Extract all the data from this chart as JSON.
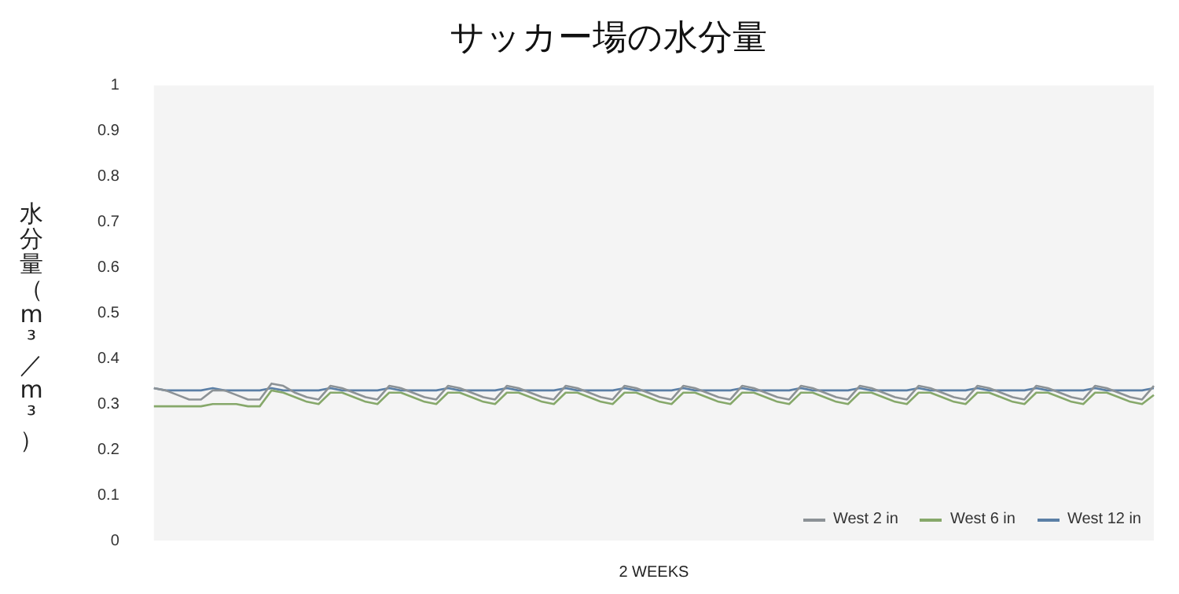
{
  "chart_data": {
    "type": "line",
    "title": "サッカー場の水分量",
    "xlabel": "2 WEEKS",
    "ylabel": "水分量（m³／m³）",
    "categories": [
      null,
      null,
      null,
      null,
      null,
      null,
      null,
      null,
      null,
      null,
      null,
      null,
      null,
      null,
      null,
      null,
      null,
      null,
      null,
      null,
      null,
      null,
      null,
      null,
      null,
      null,
      null,
      null,
      null,
      null,
      null,
      null,
      null,
      null,
      null,
      null,
      null,
      null,
      null,
      null,
      null,
      null,
      null,
      null,
      null,
      null,
      null,
      null,
      null,
      null,
      null,
      null,
      null,
      null,
      null,
      null,
      null,
      null,
      null,
      null,
      null,
      null,
      null,
      null,
      null,
      null,
      null,
      null,
      null,
      null,
      null,
      null,
      null,
      null,
      null,
      null,
      null,
      null,
      null,
      null,
      null,
      null,
      null,
      null,
      null,
      null
    ],
    "series": [
      {
        "name": "West 2 in",
        "color": "#8c9296",
        "values": [
          0.335,
          0.33,
          0.32,
          0.31,
          0.31,
          0.33,
          0.33,
          0.32,
          0.31,
          0.31,
          0.345,
          0.34,
          0.325,
          0.315,
          0.31,
          0.34,
          0.335,
          0.325,
          0.315,
          0.31,
          0.34,
          0.335,
          0.325,
          0.315,
          0.31,
          0.34,
          0.335,
          0.325,
          0.315,
          0.31,
          0.34,
          0.335,
          0.325,
          0.315,
          0.31,
          0.34,
          0.335,
          0.325,
          0.315,
          0.31,
          0.34,
          0.335,
          0.325,
          0.315,
          0.31,
          0.34,
          0.335,
          0.325,
          0.315,
          0.31,
          0.34,
          0.335,
          0.325,
          0.315,
          0.31,
          0.34,
          0.335,
          0.325,
          0.315,
          0.31,
          0.34,
          0.335,
          0.325,
          0.315,
          0.31,
          0.34,
          0.335,
          0.325,
          0.315,
          0.31,
          0.34,
          0.335,
          0.325,
          0.315,
          0.31,
          0.34,
          0.335,
          0.325,
          0.315,
          0.31,
          0.34,
          0.335,
          0.325,
          0.315,
          0.31,
          0.34
        ]
      },
      {
        "name": "West 6 in",
        "color": "#86a86a",
        "values": [
          0.295,
          0.295,
          0.295,
          0.295,
          0.295,
          0.3,
          0.3,
          0.3,
          0.295,
          0.295,
          0.33,
          0.325,
          0.315,
          0.305,
          0.3,
          0.325,
          0.325,
          0.315,
          0.305,
          0.3,
          0.325,
          0.325,
          0.315,
          0.305,
          0.3,
          0.325,
          0.325,
          0.315,
          0.305,
          0.3,
          0.325,
          0.325,
          0.315,
          0.305,
          0.3,
          0.325,
          0.325,
          0.315,
          0.305,
          0.3,
          0.325,
          0.325,
          0.315,
          0.305,
          0.3,
          0.325,
          0.325,
          0.315,
          0.305,
          0.3,
          0.325,
          0.325,
          0.315,
          0.305,
          0.3,
          0.325,
          0.325,
          0.315,
          0.305,
          0.3,
          0.325,
          0.325,
          0.315,
          0.305,
          0.3,
          0.325,
          0.325,
          0.315,
          0.305,
          0.3,
          0.325,
          0.325,
          0.315,
          0.305,
          0.3,
          0.325,
          0.325,
          0.315,
          0.305,
          0.3,
          0.325,
          0.325,
          0.315,
          0.305,
          0.3,
          0.32
        ]
      },
      {
        "name": "West 12 in",
        "color": "#5b7fa6",
        "values": [
          0.335,
          0.33,
          0.33,
          0.33,
          0.33,
          0.335,
          0.33,
          0.33,
          0.33,
          0.33,
          0.335,
          0.33,
          0.33,
          0.33,
          0.33,
          0.335,
          0.33,
          0.33,
          0.33,
          0.33,
          0.335,
          0.33,
          0.33,
          0.33,
          0.33,
          0.335,
          0.33,
          0.33,
          0.33,
          0.33,
          0.335,
          0.33,
          0.33,
          0.33,
          0.33,
          0.335,
          0.33,
          0.33,
          0.33,
          0.33,
          0.335,
          0.33,
          0.33,
          0.33,
          0.33,
          0.335,
          0.33,
          0.33,
          0.33,
          0.33,
          0.335,
          0.33,
          0.33,
          0.33,
          0.33,
          0.335,
          0.33,
          0.33,
          0.33,
          0.33,
          0.335,
          0.33,
          0.33,
          0.33,
          0.33,
          0.335,
          0.33,
          0.33,
          0.33,
          0.33,
          0.335,
          0.33,
          0.33,
          0.33,
          0.33,
          0.335,
          0.33,
          0.33,
          0.33,
          0.33,
          0.335,
          0.33,
          0.33,
          0.33,
          0.33,
          0.335
        ]
      }
    ],
    "ylim": [
      0,
      1
    ],
    "yticks": [
      0,
      0.1,
      0.2,
      0.3,
      0.4,
      0.5,
      0.6,
      0.7,
      0.8,
      0.9,
      1
    ],
    "grid": false,
    "legend": "bottom right",
    "marker": "none",
    "line_style": "solid",
    "tick_labels": "y"
  }
}
